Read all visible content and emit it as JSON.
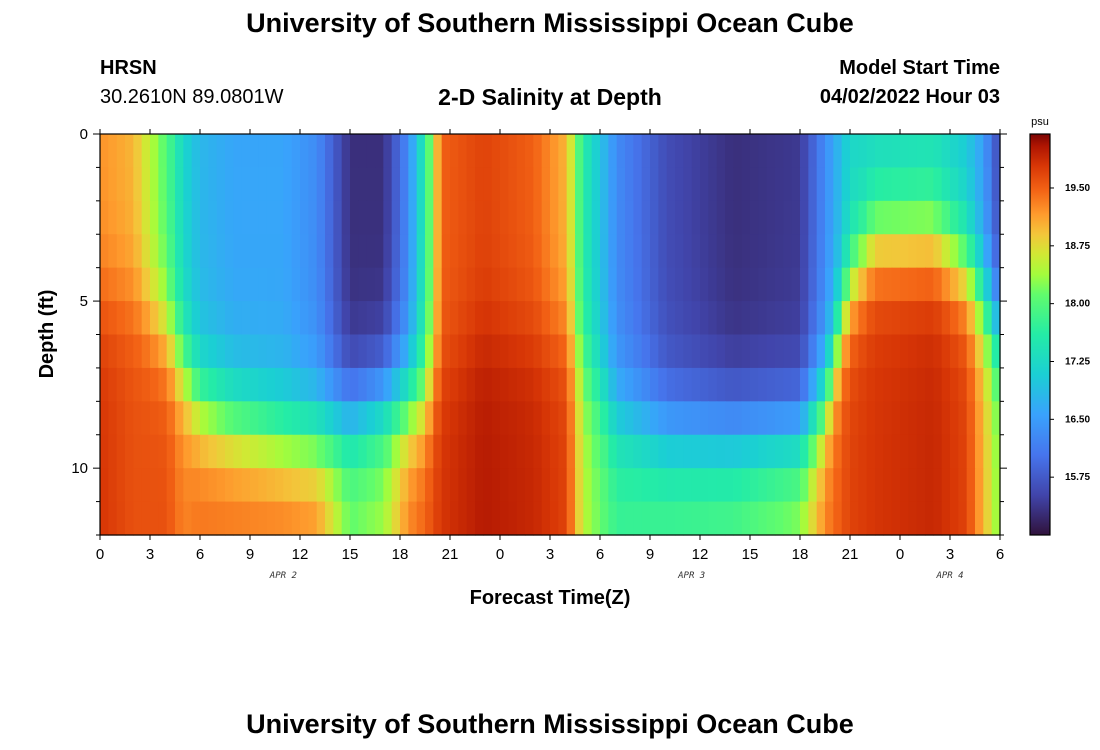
{
  "header": {
    "title": "University of Southern Mississippi Ocean Cube",
    "station": "HRSN",
    "coordinates": "30.2610N  89.0801W",
    "subtitle": "2-D Salinity at Depth",
    "model_start_label": "Model Start Time",
    "model_start_value": "04/02/2022 Hour 03"
  },
  "footer": {
    "title": "University of Southern Mississippi Ocean Cube"
  },
  "chart_data": {
    "type": "heatmap",
    "title": "2-D Salinity at Depth",
    "xlabel": "Forecast Time(Z)",
    "ylabel": "Depth (ft)",
    "x_hours_range": [
      0,
      54
    ],
    "x_tick_labels": [
      "0",
      "3",
      "6",
      "9",
      "12",
      "15",
      "18",
      "21",
      "0",
      "3",
      "6",
      "9",
      "12",
      "15",
      "18",
      "21",
      "0",
      "3",
      "6"
    ],
    "day_labels": [
      {
        "label": "APR 2",
        "hour": 11
      },
      {
        "label": "APR 3",
        "hour": 35.5
      },
      {
        "label": "APR 4",
        "hour": 51
      }
    ],
    "y_range_ft": [
      0,
      12
    ],
    "y_tick_labels": [
      0,
      5,
      10
    ],
    "colorbar": {
      "unit": "psu",
      "min": 15.0,
      "max": 20.2,
      "tick_values": [
        19.5,
        18.75,
        18.0,
        17.25,
        16.5,
        15.75
      ],
      "tick_labels": [
        "19.50",
        "18.75",
        "18.00",
        "17.25",
        "16.50",
        "15.75"
      ]
    },
    "salinity_keyframes": {
      "hours": [
        0,
        2,
        4,
        5,
        6,
        8,
        11,
        13,
        15,
        17,
        18.5,
        19.5,
        20.5,
        23,
        26,
        28,
        29,
        31,
        34,
        38,
        42,
        43.5,
        45,
        46.5,
        50,
        52,
        53,
        54
      ],
      "surface_psu": [
        19.2,
        19.0,
        18.0,
        17.2,
        16.8,
        16.6,
        16.6,
        16.3,
        15.3,
        15.3,
        16.3,
        17.6,
        19.5,
        19.7,
        19.5,
        19.0,
        17.6,
        16.3,
        15.6,
        15.3,
        15.4,
        16.3,
        17.2,
        17.2,
        17.3,
        17.0,
        16.5,
        15.5
      ],
      "bottom_psu": [
        19.8,
        19.6,
        19.6,
        19.3,
        19.4,
        19.4,
        19.4,
        19.3,
        18.2,
        18.4,
        19.3,
        19.5,
        19.8,
        20.0,
        19.9,
        19.7,
        18.5,
        17.8,
        17.9,
        18.0,
        18.4,
        19.3,
        19.7,
        19.8,
        19.9,
        19.7,
        19.0,
        18.2
      ],
      "mid_depth_ft": [
        5,
        5,
        6,
        7,
        8,
        8.5,
        9,
        9,
        8.5,
        8,
        8,
        8,
        7,
        6,
        6,
        6,
        7,
        8.5,
        9,
        9,
        9,
        8,
        4.5,
        3,
        3,
        4,
        5,
        6
      ]
    }
  }
}
